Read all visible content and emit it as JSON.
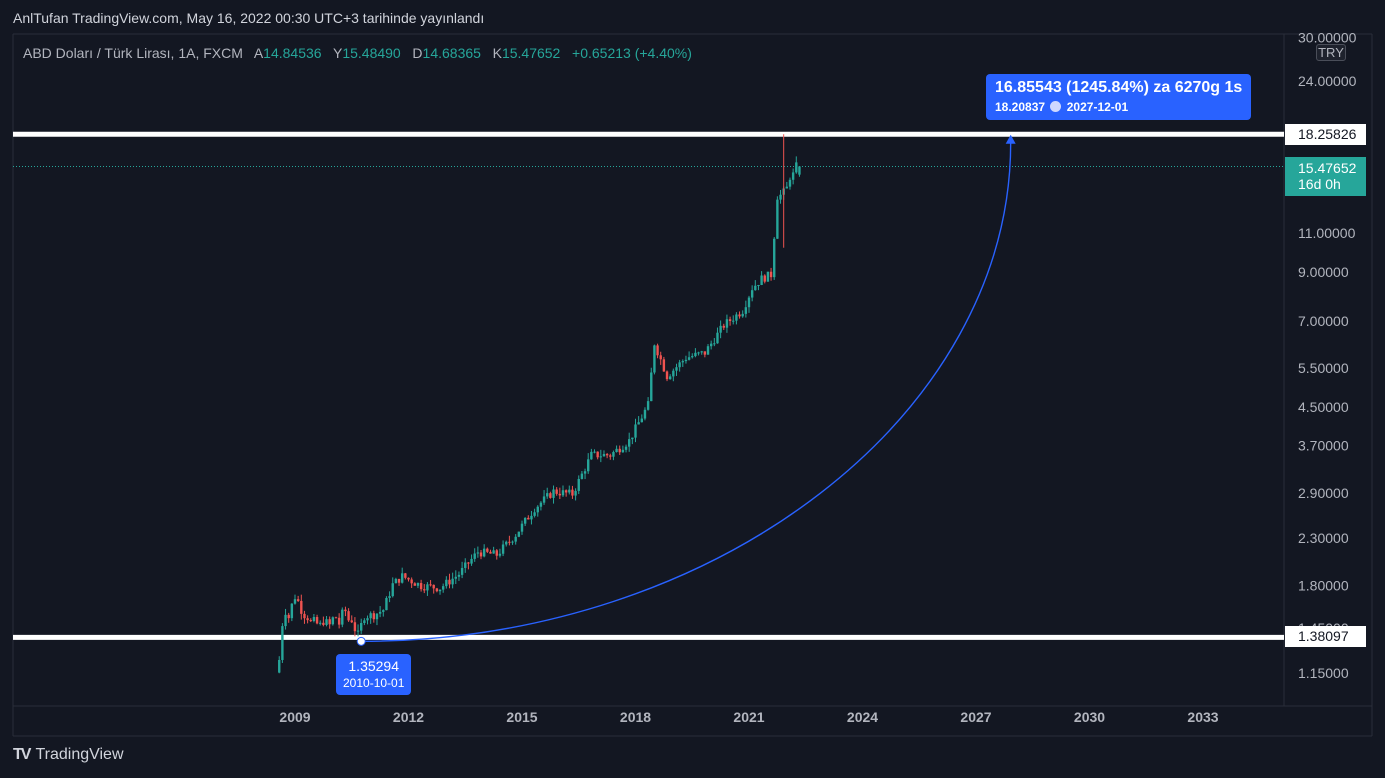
{
  "header": {
    "title": "AnlTufan TradingView.com, May 16, 2022 00:30 UTC+3 tarihinde yayınlandı"
  },
  "symbol_bar": {
    "name": "ABD Doları / Türk Lirası, 1A, FXCM",
    "open_label": "A",
    "open": "14.84536",
    "high_label": "Y",
    "high": "15.48490",
    "low_label": "D",
    "low": "14.68365",
    "close_label": "K",
    "close": "15.47652",
    "change": "+0.65213 (+4.40%)"
  },
  "currency_button": "TRY",
  "price_axis_labels": [
    "30.00000",
    "24.00000",
    "11.00000",
    "9.00000",
    "7.00000",
    "5.50000",
    "4.50000",
    "3.70000",
    "2.90000",
    "2.30000",
    "1.80000",
    "1.45000",
    "1.15000"
  ],
  "time_axis_labels": [
    "2009",
    "2012",
    "2015",
    "2018",
    "2021",
    "2024",
    "2027",
    "2030",
    "2033"
  ],
  "horizontal_lines": {
    "upper": "18.25826",
    "lower": "1.38097"
  },
  "current_price": {
    "value": "15.47652",
    "countdown": "16d 0h"
  },
  "measure_callout": {
    "line1": "16.85543 (1245.84%) za 6270g 1s",
    "price": "18.20837",
    "date": "2027-12-01"
  },
  "start_callout": {
    "price": "1.35294",
    "date": "2010-10-01"
  },
  "logo_text": "TradingView",
  "colors": {
    "background": "#131722",
    "up": "#26a69a",
    "down": "#ef5350",
    "measure": "#2962ff",
    "hline": "#ffffff"
  },
  "chart_data": {
    "type": "candlestick",
    "interval": "1M",
    "y_scale": "log",
    "ylim": [
      1.05,
      30
    ],
    "xlim": [
      "2007-05",
      "2035-04"
    ],
    "series": [
      {
        "name": "USD/TRY",
        "x": [
          "2008-08",
          "2008-09",
          "2008-10",
          "2008-11",
          "2008-12",
          "2009-01",
          "2009-02",
          "2009-03",
          "2009-04",
          "2009-05",
          "2009-06",
          "2009-07",
          "2009-08",
          "2009-09",
          "2009-10",
          "2009-11",
          "2009-12",
          "2010-01",
          "2010-02",
          "2010-03",
          "2010-04",
          "2010-05",
          "2010-06",
          "2010-07",
          "2010-08",
          "2010-09",
          "2010-10",
          "2010-11",
          "2010-12",
          "2011-03",
          "2011-06",
          "2011-09",
          "2011-12",
          "2012-06",
          "2012-12",
          "2013-06",
          "2013-12",
          "2014-06",
          "2014-12",
          "2015-06",
          "2015-12",
          "2016-06",
          "2016-12",
          "2017-06",
          "2017-12",
          "2018-06",
          "2018-08",
          "2018-12",
          "2019-06",
          "2019-12",
          "2020-06",
          "2020-12",
          "2021-03",
          "2021-06",
          "2021-09",
          "2021-11",
          "2021-12",
          "2022-01",
          "2022-02",
          "2022-03",
          "2022-04",
          "2022-05"
        ],
        "close": [
          1.17,
          1.23,
          1.48,
          1.58,
          1.53,
          1.63,
          1.7,
          1.66,
          1.59,
          1.55,
          1.53,
          1.49,
          1.5,
          1.48,
          1.47,
          1.5,
          1.49,
          1.47,
          1.52,
          1.53,
          1.48,
          1.56,
          1.58,
          1.51,
          1.51,
          1.44,
          1.4,
          1.47,
          1.54,
          1.55,
          1.59,
          1.81,
          1.89,
          1.8,
          1.78,
          1.91,
          2.14,
          2.11,
          2.34,
          2.68,
          2.92,
          2.88,
          3.52,
          3.52,
          3.79,
          4.55,
          6.25,
          5.28,
          5.8,
          5.95,
          6.85,
          7.4,
          8.3,
          8.7,
          8.88,
          13.3,
          13.35,
          13.55,
          13.85,
          14.7,
          14.84,
          15.48
        ]
      }
    ],
    "horizontal_levels": [
      18.25826,
      1.38097
    ],
    "current_price": 15.47652,
    "projection": {
      "from": {
        "date": "2010-10-01",
        "price": 1.35294
      },
      "to": {
        "date": "2027-12-01",
        "price": 18.20837
      },
      "change": 16.85543,
      "change_pct": 1245.84
    }
  }
}
